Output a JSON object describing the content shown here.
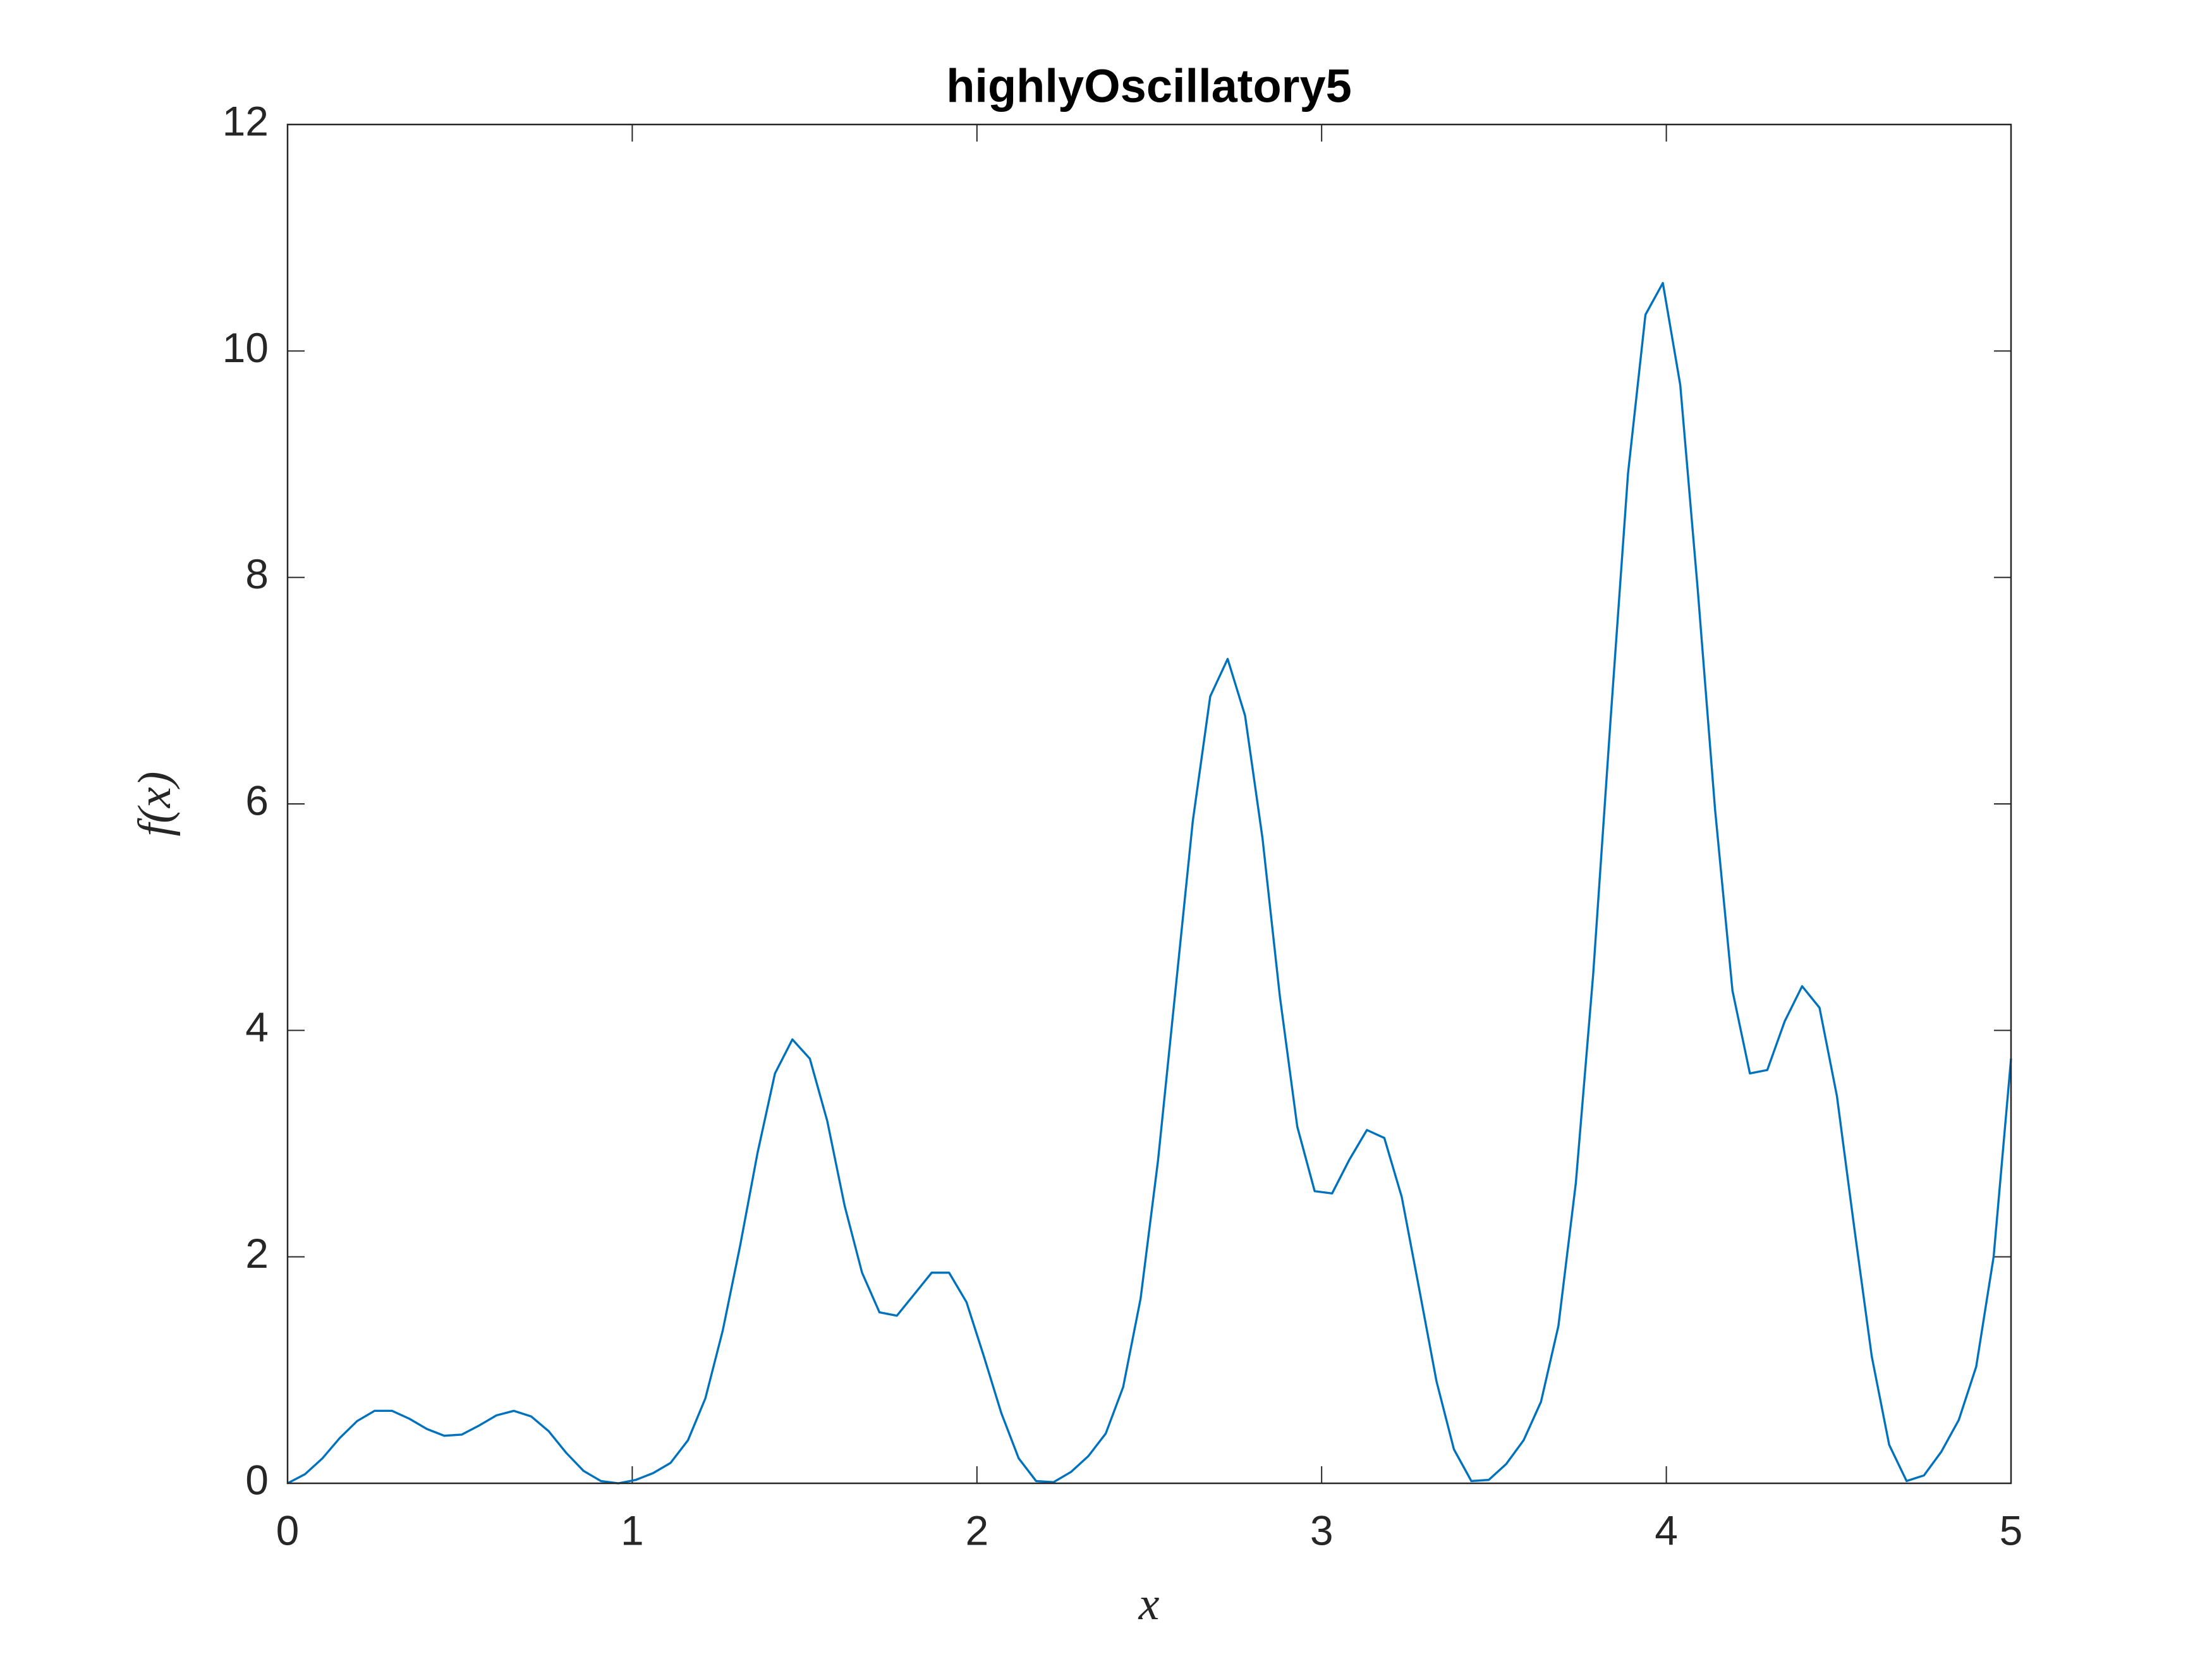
{
  "chart_data": {
    "type": "line",
    "title": "highlyOscillatory5",
    "xlabel": "x",
    "ylabel": "f(x)",
    "x": [
      0,
      0.0505,
      0.101,
      0.1515,
      0.202,
      0.2525,
      0.303,
      0.3535,
      0.404,
      0.4545,
      0.5051,
      0.5556,
      0.6061,
      0.6566,
      0.7071,
      0.7576,
      0.8081,
      0.8586,
      0.9091,
      0.9596,
      1.0101,
      1.0606,
      1.1111,
      1.1616,
      1.2121,
      1.2626,
      1.3131,
      1.3636,
      1.4141,
      1.4646,
      1.5152,
      1.5657,
      1.6162,
      1.6667,
      1.7172,
      1.7677,
      1.8182,
      1.8687,
      1.9192,
      1.9697,
      2.0202,
      2.0707,
      2.1212,
      2.1717,
      2.2222,
      2.2727,
      2.3232,
      2.3737,
      2.4242,
      2.4747,
      2.5253,
      2.5758,
      2.6263,
      2.6768,
      2.7273,
      2.7778,
      2.8283,
      2.8788,
      2.9293,
      2.9798,
      3.0303,
      3.0808,
      3.1313,
      3.1818,
      3.2323,
      3.2828,
      3.3333,
      3.3838,
      3.4343,
      3.4848,
      3.5354,
      3.5859,
      3.6364,
      3.6869,
      3.7374,
      3.7879,
      3.8384,
      3.8889,
      3.9394,
      3.9899,
      4.0404,
      4.0909,
      4.1414,
      4.1919,
      4.2424,
      4.2929,
      4.3434,
      4.3939,
      4.4444,
      4.4949,
      4.5455,
      4.596,
      4.6465,
      4.697,
      4.7475,
      4.798,
      4.8485,
      4.899,
      4.9495,
      5
    ],
    "series": [
      {
        "color": "#0072bd",
        "values": [
          0,
          0.08,
          0.22,
          0.4,
          0.55,
          0.64,
          0.64,
          0.57,
          0.48,
          0.42,
          0.43,
          0.51,
          0.6,
          0.64,
          0.59,
          0.46,
          0.27,
          0.11,
          0.02,
          0,
          0.03,
          0.09,
          0.18,
          0.38,
          0.75,
          1.35,
          2.1,
          2.92,
          3.62,
          3.92,
          3.75,
          3.2,
          2.45,
          1.86,
          1.51,
          1.48,
          1.67,
          1.86,
          1.86,
          1.6,
          1.12,
          0.62,
          0.22,
          0.02,
          0.01,
          0.1,
          0.24,
          0.44,
          0.85,
          1.63,
          2.85,
          4.35,
          5.85,
          6.95,
          7.28,
          6.78,
          5.7,
          4.3,
          3.15,
          2.58,
          2.56,
          2.86,
          3.12,
          3.05,
          2.53,
          1.72,
          0.9,
          0.3,
          0.02,
          0.03,
          0.17,
          0.38,
          0.72,
          1.39,
          2.65,
          4.5,
          6.75,
          8.92,
          10.32,
          10.6,
          9.7,
          7.9,
          5.95,
          4.35,
          3.62,
          3.65,
          4.08,
          4.39,
          4.2,
          3.42,
          2.25,
          1.12,
          0.34,
          0.02,
          0.07,
          0.28,
          0.56,
          1.03,
          2,
          3.75
        ]
      }
    ],
    "xlim": [
      0,
      5
    ],
    "ylim": [
      0,
      12
    ],
    "xticks": [
      0,
      1,
      2,
      3,
      4,
      5
    ],
    "yticks": [
      0,
      2,
      4,
      6,
      8,
      10,
      12
    ],
    "grid": false
  }
}
